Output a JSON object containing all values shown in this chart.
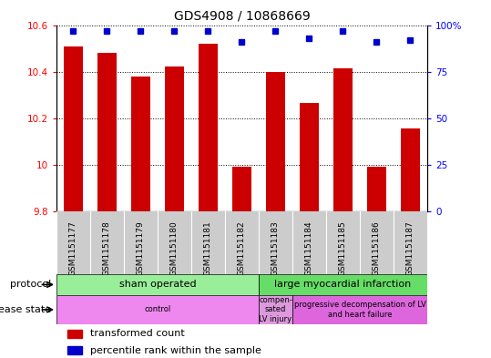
{
  "title": "GDS4908 / 10868669",
  "samples": [
    "GSM1151177",
    "GSM1151178",
    "GSM1151179",
    "GSM1151180",
    "GSM1151181",
    "GSM1151182",
    "GSM1151183",
    "GSM1151184",
    "GSM1151185",
    "GSM1151186",
    "GSM1151187"
  ],
  "transformed_count": [
    10.51,
    10.48,
    10.38,
    10.42,
    10.52,
    9.99,
    10.4,
    10.265,
    10.415,
    9.99,
    10.155
  ],
  "percentile_rank": [
    97,
    97,
    97,
    97,
    97,
    91,
    97,
    93,
    97,
    91,
    92
  ],
  "ylim_left": [
    9.8,
    10.6
  ],
  "ylim_right": [
    0,
    100
  ],
  "bar_color": "#cc0000",
  "dot_color": "#0000cc",
  "grid_color": "#000000",
  "bg_color": "#ffffff",
  "protocol_groups": [
    {
      "label": "sham operated",
      "start": 0,
      "end": 5,
      "color": "#99ee99"
    },
    {
      "label": "large myocardial infarction",
      "start": 6,
      "end": 10,
      "color": "#66dd66"
    }
  ],
  "disease_groups": [
    {
      "label": "control",
      "start": 0,
      "end": 5,
      "color": "#ee88ee"
    },
    {
      "label": "compen-\nsated\nLV injury",
      "start": 6,
      "end": 6,
      "color": "#dd99dd"
    },
    {
      "label": "progressive decompensation of LV\nand heart failure",
      "start": 7,
      "end": 10,
      "color": "#dd66dd"
    }
  ],
  "legend_items": [
    {
      "label": "transformed count",
      "color": "#cc0000"
    },
    {
      "label": "percentile rank within the sample",
      "color": "#0000cc"
    }
  ],
  "tick_bg_color": "#cccccc",
  "n_samples": 11,
  "left_yticks": [
    9.8,
    10.0,
    10.2,
    10.4,
    10.6
  ],
  "left_yticklabels": [
    "9.8",
    "10",
    "10.2",
    "10.4",
    "10.6"
  ],
  "right_yticks": [
    0,
    25,
    50,
    75,
    100
  ],
  "right_yticklabels": [
    "0",
    "25",
    "50",
    "75",
    "100%"
  ]
}
